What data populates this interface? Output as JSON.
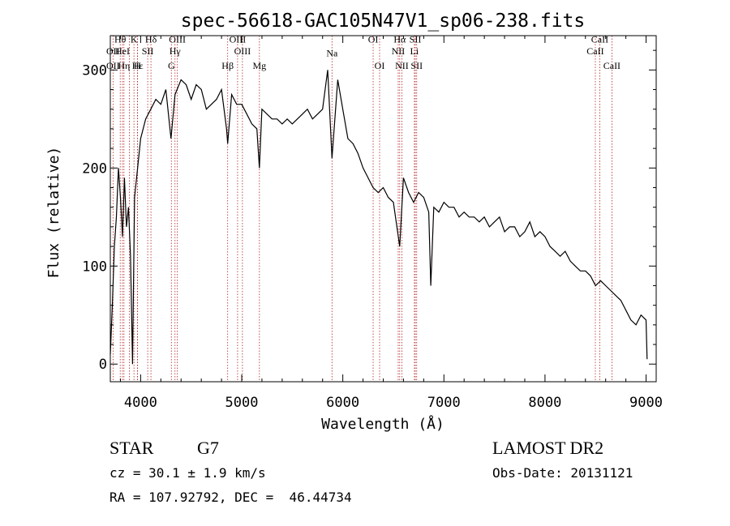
{
  "chart_data": {
    "type": "line",
    "title": "spec-56618-GAC105N47V1_sp06-238.fits",
    "xlabel": "Wavelength (Å)",
    "ylabel": "Flux (relative)",
    "xlim": [
      3700,
      9100
    ],
    "ylim": [
      -18,
      335
    ],
    "xticks": [
      4000,
      5000,
      6000,
      7000,
      8000,
      9000
    ],
    "yticks": [
      0,
      100,
      200,
      300
    ],
    "grid": false,
    "series": [
      {
        "color": "#000000",
        "x": [
          3700,
          3720,
          3740,
          3760,
          3780,
          3800,
          3820,
          3840,
          3860,
          3880,
          3900,
          3920,
          3940,
          3960,
          3980,
          4000,
          4050,
          4100,
          4150,
          4200,
          4250,
          4300,
          4340,
          4400,
          4450,
          4500,
          4550,
          4600,
          4650,
          4700,
          4750,
          4800,
          4850,
          4861,
          4900,
          4950,
          5000,
          5050,
          5100,
          5150,
          5175,
          5200,
          5250,
          5300,
          5350,
          5400,
          5450,
          5500,
          5550,
          5600,
          5650,
          5700,
          5750,
          5800,
          5850,
          5893,
          5950,
          6000,
          6050,
          6100,
          6150,
          6200,
          6250,
          6300,
          6350,
          6400,
          6450,
          6500,
          6563,
          6600,
          6650,
          6700,
          6750,
          6800,
          6850,
          6870,
          6900,
          6950,
          7000,
          7050,
          7100,
          7150,
          7200,
          7250,
          7300,
          7350,
          7400,
          7450,
          7500,
          7550,
          7600,
          7650,
          7700,
          7750,
          7800,
          7850,
          7900,
          7950,
          8000,
          8050,
          8100,
          8150,
          8200,
          8250,
          8300,
          8350,
          8400,
          8450,
          8500,
          8550,
          8600,
          8650,
          8700,
          8750,
          8800,
          8850,
          8900,
          8950,
          9000,
          9010
        ],
        "y": [
          10,
          60,
          120,
          150,
          200,
          170,
          130,
          190,
          140,
          160,
          110,
          0,
          170,
          190,
          210,
          230,
          250,
          260,
          270,
          265,
          280,
          230,
          275,
          290,
          285,
          270,
          285,
          280,
          260,
          265,
          270,
          280,
          240,
          225,
          275,
          265,
          265,
          255,
          245,
          240,
          200,
          260,
          255,
          250,
          250,
          245,
          250,
          245,
          250,
          255,
          260,
          250,
          255,
          260,
          300,
          210,
          290,
          260,
          230,
          225,
          215,
          200,
          190,
          180,
          175,
          180,
          170,
          165,
          120,
          190,
          175,
          165,
          175,
          170,
          155,
          80,
          160,
          155,
          165,
          160,
          160,
          150,
          155,
          150,
          150,
          145,
          150,
          140,
          145,
          150,
          135,
          140,
          140,
          130,
          135,
          145,
          130,
          135,
          130,
          120,
          115,
          110,
          115,
          105,
          100,
          95,
          95,
          90,
          80,
          85,
          80,
          75,
          70,
          65,
          55,
          45,
          40,
          50,
          45,
          5
        ]
      }
    ],
    "annotations": [
      {
        "label": "Hθ",
        "x": 3798,
        "y": 328
      },
      {
        "label": "K",
        "x": 3934,
        "y": 328
      },
      {
        "label": "Hδ",
        "x": 4102,
        "y": 328
      },
      {
        "label": "OII",
        "x": 3727,
        "y": 316
      },
      {
        "label": "HeI",
        "x": 3820,
        "y": 316
      },
      {
        "label": "SII",
        "x": 4070,
        "y": 316
      },
      {
        "label": "OIII",
        "x": 4363,
        "y": 328
      },
      {
        "label": "Hγ",
        "x": 4340,
        "y": 316
      },
      {
        "label": "G",
        "x": 4304,
        "y": 301
      },
      {
        "label": "OIII",
        "x": 4959,
        "y": 328
      },
      {
        "label": "OIII",
        "x": 5007,
        "y": 316
      },
      {
        "label": "Hβ",
        "x": 4861,
        "y": 301
      },
      {
        "label": "Mg",
        "x": 5175,
        "y": 301
      },
      {
        "label": "OII",
        "x": 3727,
        "y": 301
      },
      {
        "label": "Hε",
        "x": 3970,
        "y": 301
      },
      {
        "label": "Hη",
        "x": 3835,
        "y": 301
      },
      {
        "label": "H",
        "x": 3968,
        "y": 301
      },
      {
        "label": "Na",
        "x": 5893,
        "y": 314
      },
      {
        "label": "OI",
        "x": 6300,
        "y": 328
      },
      {
        "label": "OI",
        "x": 6364,
        "y": 301
      },
      {
        "label": "Hα",
        "x": 6563,
        "y": 328
      },
      {
        "label": "SII",
        "x": 6717,
        "y": 328
      },
      {
        "label": "NII",
        "x": 6548,
        "y": 316
      },
      {
        "label": "Li",
        "x": 6708,
        "y": 316
      },
      {
        "label": "NII",
        "x": 6584,
        "y": 301
      },
      {
        "label": "SII",
        "x": 6731,
        "y": 301
      },
      {
        "label": "CaII",
        "x": 8542,
        "y": 328
      },
      {
        "label": "CaII",
        "x": 8498,
        "y": 316
      },
      {
        "label": "CaII",
        "x": 8662,
        "y": 301
      }
    ],
    "line_markers": [
      3727,
      3798,
      3820,
      3835,
      3889,
      3934,
      3968,
      3970,
      4070,
      4102,
      4304,
      4340,
      4363,
      4861,
      4959,
      5007,
      5175,
      5893,
      6300,
      6364,
      6548,
      6563,
      6584,
      6708,
      6717,
      6731,
      8498,
      8542,
      8662
    ],
    "line_marker_color": "#b22222"
  },
  "info": {
    "object_class": "STAR",
    "subclass": "G7",
    "release": "LAMOST DR2",
    "redshift": "cz = 30.1 ± 1.9 km/s",
    "obs_date": "Obs-Date: 20131121",
    "coords": "RA = 107.92792, DEC =  46.44734"
  }
}
